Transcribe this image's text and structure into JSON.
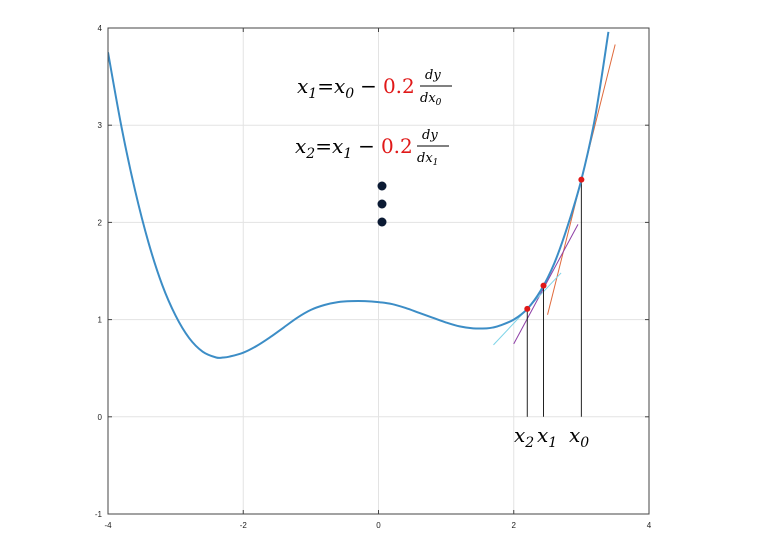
{
  "chart_data": {
    "type": "line",
    "title": "",
    "xlabel": "",
    "ylabel": "",
    "xlim": [
      -4,
      4
    ],
    "ylim": [
      -1,
      4
    ],
    "x_ticks": [
      "-4",
      "-2",
      "0",
      "2",
      "4"
    ],
    "y_ticks": [
      "-1",
      "0",
      "1",
      "2",
      "3",
      "4"
    ],
    "grid": true,
    "legend": "none",
    "series": [
      {
        "color": "#3c8dc6",
        "x": [
          -4.0,
          -3.8,
          -3.6,
          -3.4,
          -3.2,
          -3.0,
          -2.8,
          -2.6,
          -2.4,
          -2.3,
          -2.2,
          -2.0,
          -1.8,
          -1.6,
          -1.4,
          -1.2,
          -1.0,
          -0.8,
          -0.6,
          -0.4,
          -0.2,
          0.0,
          0.2,
          0.4,
          0.6,
          0.8,
          1.0,
          1.2,
          1.4,
          1.6,
          1.7,
          1.8,
          2.0,
          2.2,
          2.4,
          2.6,
          2.8,
          3.0,
          3.2,
          3.4
        ],
        "y": [
          3.75,
          2.98,
          2.33,
          1.79,
          1.36,
          1.04,
          0.81,
          0.67,
          0.61,
          0.61,
          0.62,
          0.66,
          0.73,
          0.82,
          0.92,
          1.02,
          1.1,
          1.15,
          1.18,
          1.19,
          1.19,
          1.18,
          1.16,
          1.12,
          1.07,
          1.02,
          0.97,
          0.93,
          0.91,
          0.91,
          0.92,
          0.94,
          1.0,
          1.11,
          1.3,
          1.58,
          1.97,
          2.44,
          3.07,
          3.96
        ]
      }
    ],
    "points": [
      {
        "label": "x_0",
        "x": 3.0,
        "y": 2.44
      },
      {
        "label": "x_1",
        "x": 2.44,
        "y": 1.35
      },
      {
        "label": "x_2",
        "x": 2.2,
        "y": 1.11
      }
    ],
    "tangent_lines": [
      {
        "color": "#e06a3c",
        "x": [
          2.5,
          3.5
        ],
        "y": [
          1.05,
          3.83
        ]
      },
      {
        "color": "#8e3fa6",
        "x": [
          2.0,
          2.95
        ],
        "y": [
          0.75,
          1.98
        ]
      },
      {
        "color": "#7fd4e8",
        "x": [
          1.7,
          2.7
        ],
        "y": [
          0.74,
          1.48
        ]
      }
    ],
    "annotations": {
      "eq1": {
        "lhs": "x",
        "lhs_sub": "1",
        "eq": "=",
        "rhs": "x",
        "rhs_sub": "0",
        "minus": "−",
        "coef": "0.2",
        "num": "dy",
        "den": "dx",
        "den_sub": "0"
      },
      "eq2": {
        "lhs": "x",
        "lhs_sub": "2",
        "eq": "=",
        "rhs": "x",
        "rhs_sub": "1",
        "minus": "−",
        "coef": "0.2",
        "num": "dy",
        "den": "dx",
        "den_sub": "1"
      },
      "labels": [
        {
          "base": "x",
          "sub": "2"
        },
        {
          "base": "x",
          "sub": "1"
        },
        {
          "base": "x",
          "sub": "0"
        }
      ]
    },
    "colors": {
      "curve": "#3c8dc6",
      "point": "#e01818",
      "coef": "#e01818",
      "drop_line": "#222222",
      "dot": "#0b1a33"
    }
  }
}
